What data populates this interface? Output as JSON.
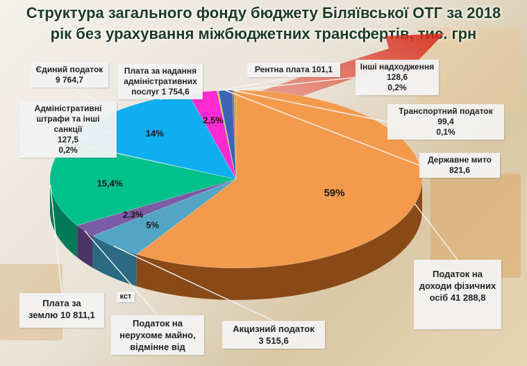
{
  "chart_data": {
    "type": "pie",
    "title_line1": "Структура загального фонду бюджету Біляївської ОТГ за 2018",
    "title_line2": "рік без урахування міжбюджетних трансфертів, тис. грн",
    "slices": [
      {
        "key": "pdfo",
        "label_lines": [
          "Податок на",
          "доходи фізичних",
          "осіб 41 288,8"
        ],
        "value": 41288.8,
        "percent": "59%",
        "color": "#f39a4d",
        "side": "#8a4a17"
      },
      {
        "key": "akcyz",
        "label_lines": [
          "Акцизний податок",
          "3 515,6"
        ],
        "value": 3515.6,
        "percent": "5%",
        "color": "#52a5c4",
        "side": "#2c6982"
      },
      {
        "key": "neruh",
        "label_lines": [
          "Податок на",
          "нерухоме майно,",
          "відмінне від"
        ],
        "value": 1600,
        "percent": "2.3%",
        "color": "#7b5aa6",
        "side": "#4a3566"
      },
      {
        "key": "zemlya",
        "label_lines": [
          "Плата за",
          "землю 10 811,1"
        ],
        "value": 10811.1,
        "percent": "15,4%",
        "color": "#00c08b",
        "side": "#007a56"
      },
      {
        "key": "admin_shtrafy",
        "label_lines": [
          "Адміністративні",
          "штрафи та інші санкції",
          "127,5",
          "0,2%"
        ],
        "value": 127.5,
        "percent": "",
        "color": "#8fe0d2",
        "side": "#4f9f92"
      },
      {
        "key": "yedynyi",
        "label_lines": [
          "Єдиний податок",
          "9 764,7"
        ],
        "value": 9764.7,
        "percent": "14%",
        "color": "#0eaef0",
        "side": "#066b94"
      },
      {
        "key": "adm_posluhy",
        "label_lines": [
          "Плата за надання",
          "адміністративних",
          "послуг 1 754,6"
        ],
        "value": 1754.6,
        "percent": "2,5%",
        "color": "#ff2ad0",
        "side": "#9c137f"
      },
      {
        "key": "rentna",
        "label_lines": [
          "Рентна плата 101,1"
        ],
        "value": 101.1,
        "percent": "",
        "color": "#a9d84a",
        "side": "#6a8c26"
      },
      {
        "key": "derzhmyto",
        "label_lines": [
          "Державне мито",
          "821,6"
        ],
        "value": 821.6,
        "percent": "",
        "color": "#3d64b8",
        "side": "#233b70"
      },
      {
        "key": "transport",
        "label_lines": [
          "Транспортний податок",
          "99,4",
          "0,1%"
        ],
        "value": 99.4,
        "percent": "",
        "color": "#c0504d",
        "side": "#7a2f2d"
      },
      {
        "key": "inshi",
        "label_lines": [
          "Інші надходження",
          "128,6",
          "0,2%"
        ],
        "value": 128.6,
        "percent": "",
        "color": "#9bbb59",
        "side": "#5f7530"
      }
    ],
    "clipped_label_fragment": "кст"
  }
}
